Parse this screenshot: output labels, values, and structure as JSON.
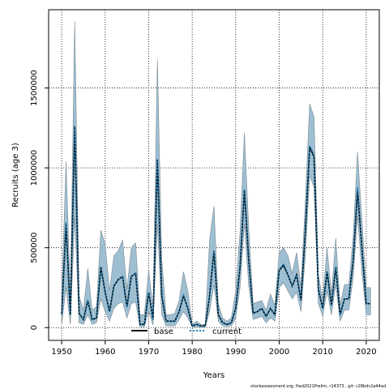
{
  "chart_data": {
    "type": "area",
    "xlabel": "Years",
    "ylabel": "Recruits (age 3)",
    "xlim": [
      1947,
      2023
    ],
    "ylim": [
      -80000,
      1990000
    ],
    "x_ticks": [
      1950,
      1960,
      1970,
      1980,
      1990,
      2000,
      2010,
      2020
    ],
    "x_tick_labels": [
      "1950",
      "1960",
      "1970",
      "1980",
      "1990",
      "2000",
      "2010",
      "2020"
    ],
    "y_ticks": [
      0,
      500000,
      1000000,
      1500000
    ],
    "y_tick_labels": [
      "0",
      "500000",
      "1000000",
      "1500000"
    ],
    "grid": true,
    "legend_position": "bottom-center",
    "footer_text": "stockassessment.org, Had2021Prelim, r14373 , git: c28bdc2a44ad",
    "colors": {
      "band_fill": "#9ebfd1",
      "band_edge": "#7a8a94",
      "base_line": "#000000",
      "current_line": "#1e7fb8",
      "grid": "#000000"
    },
    "x": [
      1950,
      1951,
      1952,
      1953,
      1954,
      1955,
      1956,
      1957,
      1958,
      1959,
      1960,
      1961,
      1962,
      1963,
      1964,
      1965,
      1966,
      1967,
      1968,
      1969,
      1970,
      1971,
      1972,
      1973,
      1974,
      1975,
      1976,
      1977,
      1978,
      1979,
      1980,
      1981,
      1982,
      1983,
      1984,
      1985,
      1986,
      1987,
      1988,
      1989,
      1990,
      1991,
      1992,
      1993,
      1994,
      1995,
      1996,
      1997,
      1998,
      1999,
      2000,
      2001,
      2002,
      2003,
      2004,
      2005,
      2006,
      2007,
      2008,
      2009,
      2010,
      2011,
      2012,
      2013,
      2014,
      2015,
      2016,
      2017,
      2018,
      2019,
      2020,
      2021
    ],
    "series": [
      {
        "name": "base",
        "style": "solid",
        "values": [
          80000,
          650000,
          80000,
          1260000,
          90000,
          50000,
          170000,
          50000,
          60000,
          380000,
          220000,
          100000,
          260000,
          300000,
          320000,
          130000,
          320000,
          340000,
          20000,
          20000,
          220000,
          50000,
          1050000,
          200000,
          40000,
          40000,
          40000,
          100000,
          200000,
          120000,
          10000,
          20000,
          10000,
          10000,
          200000,
          480000,
          80000,
          30000,
          20000,
          30000,
          120000,
          380000,
          860000,
          420000,
          90000,
          100000,
          120000,
          70000,
          120000,
          80000,
          360000,
          390000,
          330000,
          260000,
          330000,
          170000,
          600000,
          1130000,
          1070000,
          240000,
          120000,
          350000,
          140000,
          380000,
          80000,
          180000,
          180000,
          420000,
          860000,
          500000,
          150000,
          150000
        ]
      },
      {
        "name": "current",
        "style": "dotted",
        "values": [
          80000,
          660000,
          80000,
          1255000,
          90000,
          50000,
          170000,
          50000,
          60000,
          380000,
          220000,
          100000,
          260000,
          300000,
          320000,
          130000,
          320000,
          340000,
          20000,
          20000,
          220000,
          50000,
          1055000,
          200000,
          40000,
          40000,
          40000,
          100000,
          200000,
          120000,
          10000,
          20000,
          10000,
          10000,
          200000,
          480000,
          80000,
          30000,
          20000,
          30000,
          120000,
          380000,
          870000,
          420000,
          90000,
          100000,
          120000,
          70000,
          120000,
          80000,
          360000,
          400000,
          330000,
          260000,
          330000,
          170000,
          600000,
          1140000,
          1080000,
          240000,
          120000,
          350000,
          140000,
          380000,
          80000,
          180000,
          180000,
          420000,
          880000,
          500000,
          150000,
          150000
        ]
      }
    ],
    "band": {
      "lower": [
        20000,
        250000,
        20000,
        700000,
        30000,
        20000,
        80000,
        20000,
        30000,
        180000,
        100000,
        40000,
        120000,
        150000,
        160000,
        60000,
        150000,
        160000,
        5000,
        5000,
        100000,
        15000,
        650000,
        80000,
        10000,
        10000,
        10000,
        50000,
        100000,
        60000,
        2000,
        5000,
        2000,
        2000,
        100000,
        270000,
        40000,
        10000,
        8000,
        10000,
        60000,
        250000,
        650000,
        260000,
        50000,
        60000,
        70000,
        30000,
        60000,
        40000,
        250000,
        280000,
        230000,
        180000,
        220000,
        100000,
        450000,
        950000,
        880000,
        150000,
        70000,
        230000,
        80000,
        270000,
        40000,
        110000,
        110000,
        310000,
        700000,
        350000,
        80000,
        80000
      ],
      "upper": [
        200000,
        1040000,
        200000,
        1920000,
        200000,
        110000,
        370000,
        110000,
        130000,
        610000,
        520000,
        230000,
        450000,
        480000,
        550000,
        240000,
        500000,
        530000,
        80000,
        80000,
        360000,
        120000,
        1680000,
        430000,
        80000,
        80000,
        90000,
        170000,
        350000,
        230000,
        20000,
        40000,
        20000,
        20000,
        550000,
        760000,
        150000,
        60000,
        40000,
        60000,
        230000,
        600000,
        1220000,
        620000,
        150000,
        160000,
        170000,
        110000,
        210000,
        140000,
        470000,
        500000,
        450000,
        340000,
        470000,
        260000,
        790000,
        1400000,
        1320000,
        330000,
        180000,
        500000,
        210000,
        560000,
        140000,
        270000,
        270000,
        570000,
        1100000,
        680000,
        250000,
        250000
      ]
    }
  }
}
